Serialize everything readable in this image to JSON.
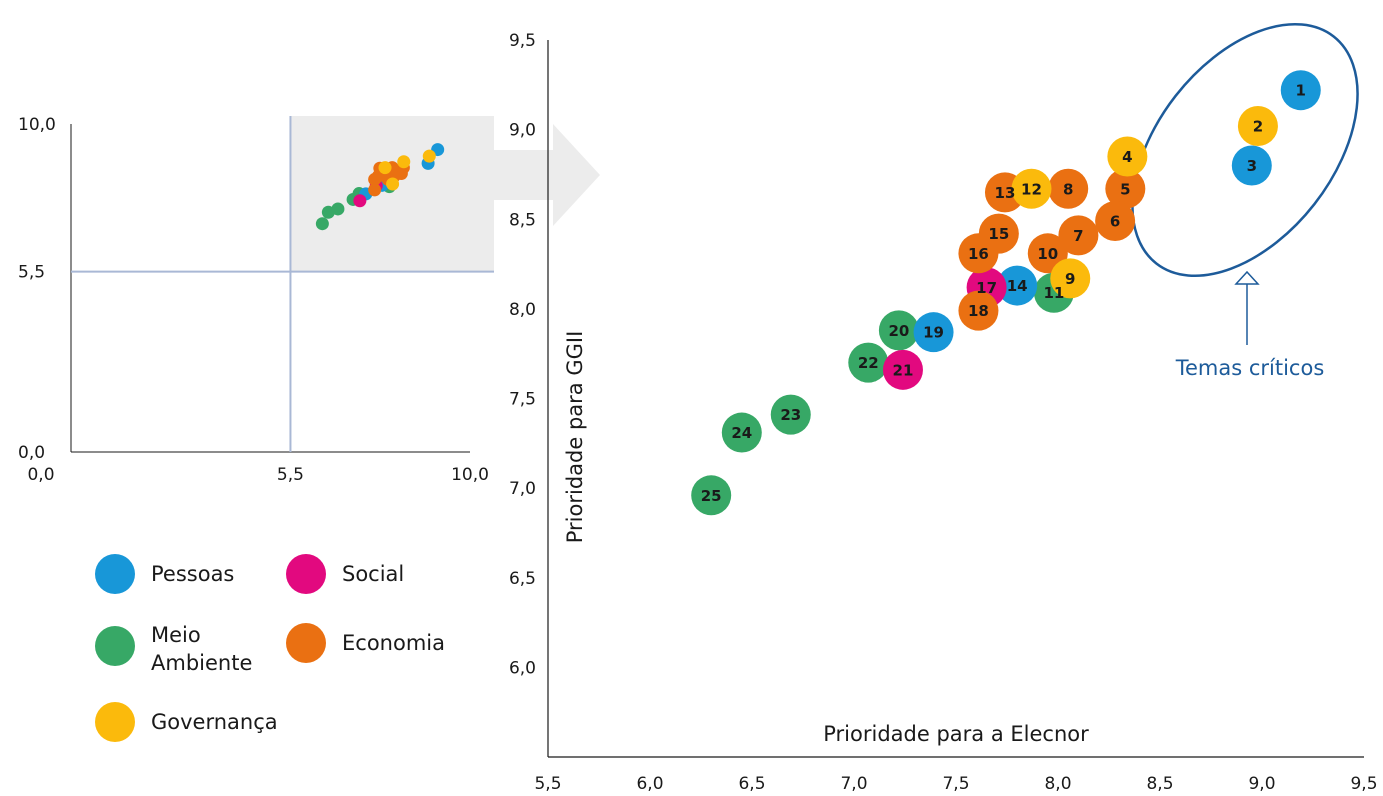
{
  "colors": {
    "Pessoas": "#1897d8",
    "Social": "#e2097f",
    "Meio Ambiente": "#37a866",
    "Economia": "#ea7012",
    "Governança": "#fbba0c",
    "annotation": "#1d5b9a",
    "inset_lines": "#a9b8d5",
    "inset_highlight": "#ececec"
  },
  "chart_data": [
    {
      "type": "scatter",
      "role": "inset_overview",
      "title": "",
      "xlabel": "",
      "ylabel": "",
      "xlim": [
        0,
        10
      ],
      "ylim": [
        0,
        10
      ],
      "x_ticks": [
        "5,5",
        "10,0"
      ],
      "y_ticks": [
        "0,0",
        "5,5",
        "10,0"
      ],
      "reference_lines": {
        "x": 5.5,
        "y": 5.5
      },
      "highlight_region": {
        "x": [
          5.5,
          10
        ],
        "y": [
          5.5,
          10
        ]
      },
      "note": "same 25 points as main chart, drawn small"
    },
    {
      "type": "scatter",
      "role": "main",
      "title": "",
      "xlabel": "Prioridade para a Elecnor",
      "ylabel": "Prioridade para GGII",
      "xlim": [
        5.5,
        9.5
      ],
      "ylim": [
        5.5,
        9.5
      ],
      "x_ticks": [
        "5,5",
        "6,0",
        "6,5",
        "7,0",
        "7,5",
        "8,0",
        "8,5",
        "9,0",
        "9,5"
      ],
      "y_ticks": [
        "6,0",
        "6,5",
        "7,0",
        "7,5",
        "8,0",
        "8,5",
        "9,0",
        "9,5"
      ],
      "annotation": "Temas críticos",
      "series": [
        {
          "name": "Pessoas",
          "points": [
            {
              "label": "1",
              "x": 9.19,
              "y": 9.22
            },
            {
              "label": "3",
              "x": 8.95,
              "y": 8.8
            },
            {
              "label": "14",
              "x": 7.8,
              "y": 8.13
            },
            {
              "label": "19",
              "x": 7.39,
              "y": 7.87
            }
          ]
        },
        {
          "name": "Social",
          "points": [
            {
              "label": "17",
              "x": 7.65,
              "y": 8.12
            },
            {
              "label": "21",
              "x": 7.24,
              "y": 7.66
            }
          ]
        },
        {
          "name": "Meio Ambiente",
          "points": [
            {
              "label": "11",
              "x": 7.98,
              "y": 8.09
            },
            {
              "label": "20",
              "x": 7.22,
              "y": 7.88
            },
            {
              "label": "22",
              "x": 7.07,
              "y": 7.7
            },
            {
              "label": "23",
              "x": 6.69,
              "y": 7.41
            },
            {
              "label": "24",
              "x": 6.45,
              "y": 7.31
            },
            {
              "label": "25",
              "x": 6.3,
              "y": 6.96
            }
          ]
        },
        {
          "name": "Economia",
          "points": [
            {
              "label": "5",
              "x": 8.33,
              "y": 8.67
            },
            {
              "label": "6",
              "x": 8.28,
              "y": 8.49
            },
            {
              "label": "7",
              "x": 8.1,
              "y": 8.41
            },
            {
              "label": "8",
              "x": 8.05,
              "y": 8.67
            },
            {
              "label": "10",
              "x": 7.95,
              "y": 8.31
            },
            {
              "label": "13",
              "x": 7.74,
              "y": 8.65
            },
            {
              "label": "15",
              "x": 7.71,
              "y": 8.42
            },
            {
              "label": "16",
              "x": 7.61,
              "y": 8.31
            },
            {
              "label": "18",
              "x": 7.61,
              "y": 7.99
            }
          ]
        },
        {
          "name": "Governança",
          "points": [
            {
              "label": "2",
              "x": 8.98,
              "y": 9.02
            },
            {
              "label": "4",
              "x": 8.34,
              "y": 8.85
            },
            {
              "label": "9",
              "x": 8.06,
              "y": 8.17
            },
            {
              "label": "12",
              "x": 7.87,
              "y": 8.67
            }
          ]
        }
      ]
    }
  ],
  "legend": [
    {
      "series": "Pessoas",
      "lines": [
        "Pessoas"
      ]
    },
    {
      "series": "Social",
      "lines": [
        "Social"
      ]
    },
    {
      "series": "Meio Ambiente",
      "lines": [
        "Meio",
        "Ambiente"
      ]
    },
    {
      "series": "Economia",
      "lines": [
        "Economia"
      ]
    },
    {
      "series": "Governança",
      "lines": [
        "Governança"
      ]
    }
  ]
}
